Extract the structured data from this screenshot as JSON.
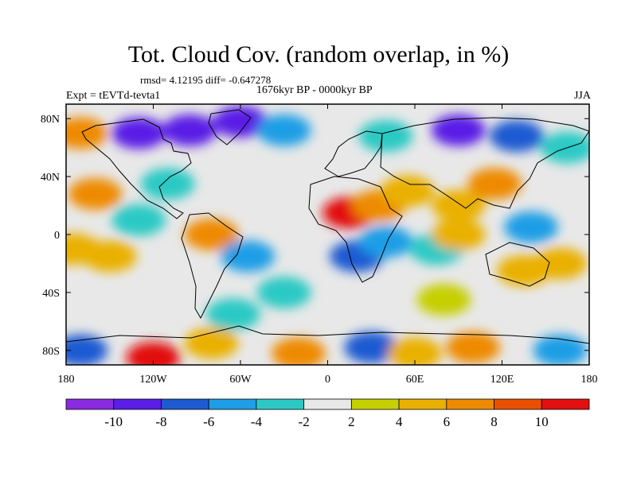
{
  "title": "Tot. Cloud Cov. (random overlap, in %)",
  "stats": "rmsd= 4.12195 diff= -0.647278",
  "experiment": "Expt = tEVTd-tevta1",
  "period": "1676kyr BP - 0000kyr BP",
  "season": "JJA",
  "lon_ticks": [
    "180",
    "120W",
    "60W",
    "0",
    "60E",
    "120E",
    "180"
  ],
  "lat_ticks": [
    "80N",
    "40N",
    "0",
    "40S",
    "80S"
  ],
  "lon_tick_values": [
    -180,
    -120,
    -60,
    0,
    60,
    120,
    180
  ],
  "lat_tick_values": [
    80,
    40,
    0,
    -40,
    -80
  ],
  "colorbar": {
    "labels": [
      "-10",
      "-8",
      "-6",
      "-4",
      "-2",
      "2",
      "4",
      "6",
      "8",
      "10"
    ],
    "colors": [
      "#8a2be2",
      "#5a1ee6",
      "#1e5ad2",
      "#1e9ee6",
      "#2cc9c4",
      "#e8e8e8",
      "#c6cf00",
      "#eab000",
      "#ee8a00",
      "#e85000",
      "#e21010"
    ]
  },
  "regions": [
    {
      "lon": -130,
      "lat": 70,
      "level": -10
    },
    {
      "lon": -95,
      "lat": 72,
      "level": -10
    },
    {
      "lon": -60,
      "lat": 78,
      "level": -9
    },
    {
      "lon": -30,
      "lat": 72,
      "level": -6
    },
    {
      "lon": 90,
      "lat": 72,
      "level": -10
    },
    {
      "lon": 130,
      "lat": 68,
      "level": -8
    },
    {
      "lon": 40,
      "lat": 68,
      "level": -4
    },
    {
      "lon": -170,
      "lat": 70,
      "level": 6
    },
    {
      "lon": 165,
      "lat": 60,
      "level": -4
    },
    {
      "lon": 15,
      "lat": 15,
      "level": 10
    },
    {
      "lon": 35,
      "lat": 20,
      "level": 6
    },
    {
      "lon": 55,
      "lat": 30,
      "level": 4
    },
    {
      "lon": 90,
      "lat": 20,
      "level": 5
    },
    {
      "lon": 115,
      "lat": 35,
      "level": 6
    },
    {
      "lon": -110,
      "lat": 35,
      "level": -4
    },
    {
      "lon": -160,
      "lat": 28,
      "level": 6
    },
    {
      "lon": -130,
      "lat": 10,
      "level": -4
    },
    {
      "lon": -80,
      "lat": 0,
      "level": 7
    },
    {
      "lon": -55,
      "lat": -15,
      "level": -5
    },
    {
      "lon": -150,
      "lat": -15,
      "level": 4
    },
    {
      "lon": 20,
      "lat": -15,
      "level": -8
    },
    {
      "lon": 40,
      "lat": -5,
      "level": -5
    },
    {
      "lon": 75,
      "lat": -10,
      "level": -4
    },
    {
      "lon": 90,
      "lat": 0,
      "level": 4
    },
    {
      "lon": 140,
      "lat": 5,
      "level": -6
    },
    {
      "lon": 135,
      "lat": -25,
      "level": 4
    },
    {
      "lon": 160,
      "lat": -20,
      "level": 5
    },
    {
      "lon": -175,
      "lat": -10,
      "level": 5
    },
    {
      "lon": -30,
      "lat": -40,
      "level": -3
    },
    {
      "lon": -65,
      "lat": -55,
      "level": -4
    },
    {
      "lon": 80,
      "lat": -45,
      "level": 3
    },
    {
      "lon": -120,
      "lat": -85,
      "level": 10
    },
    {
      "lon": -170,
      "lat": -80,
      "level": -8
    },
    {
      "lon": 30,
      "lat": -78,
      "level": -8
    },
    {
      "lon": 100,
      "lat": -78,
      "level": 7
    },
    {
      "lon": 60,
      "lat": -82,
      "level": 5
    },
    {
      "lon": -20,
      "lat": -82,
      "level": 6
    },
    {
      "lon": 160,
      "lat": -80,
      "level": -5
    },
    {
      "lon": -80,
      "lat": -75,
      "level": 4
    }
  ]
}
